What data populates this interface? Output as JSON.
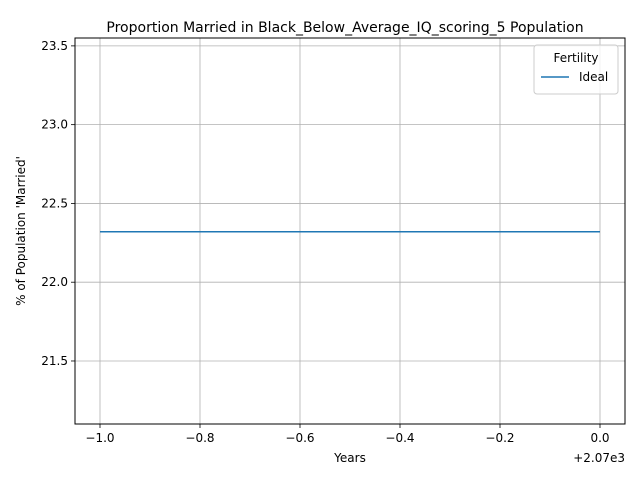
{
  "chart_data": {
    "type": "line",
    "title": "Proportion Married in Black_Below_Average_IQ_scoring_5 Population",
    "xlabel": "Years",
    "ylabel": "% of Population 'Married'",
    "x_offset_label": "+2.07e3",
    "xlim": [
      2068.95,
      2070.05
    ],
    "ylim": [
      21.1,
      23.55
    ],
    "x_ticks": [
      2069.0,
      2069.2,
      2069.4,
      2069.6,
      2069.8,
      2070.0
    ],
    "x_tick_labels": [
      "−1.0",
      "−0.8",
      "−0.6",
      "−0.4",
      "−0.2",
      "0.0"
    ],
    "y_ticks": [
      21.5,
      22.0,
      22.5,
      23.0,
      23.5
    ],
    "y_tick_labels": [
      "21.5",
      "22.0",
      "22.5",
      "23.0",
      "23.5"
    ],
    "grid": true,
    "legend": {
      "title": "Fertility",
      "placement": "top-right"
    },
    "series": [
      {
        "name": "Ideal",
        "color": "#1f77b4",
        "x": [
          2069,
          2070
        ],
        "y": [
          22.32,
          22.32
        ]
      }
    ]
  }
}
